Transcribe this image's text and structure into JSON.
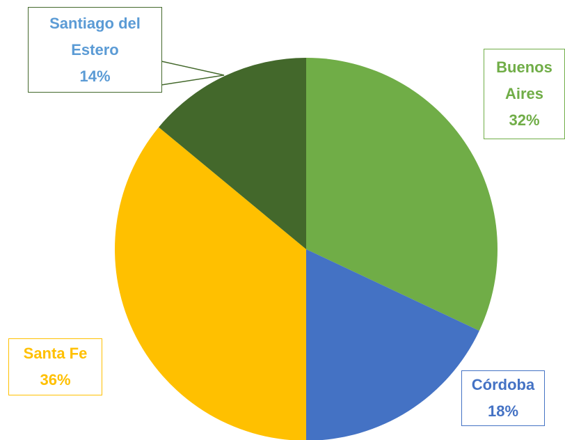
{
  "chart_data": {
    "type": "pie",
    "categories": [
      "Buenos Aires",
      "Córdoba",
      "Santa Fe",
      "Santiago del Estero"
    ],
    "values": [
      32,
      18,
      36,
      14
    ],
    "value_labels": [
      "32%",
      "18%",
      "36%",
      "14%"
    ],
    "colors": [
      "#70ad47",
      "#4472c4",
      "#ffc000",
      "#43682b"
    ],
    "label_text_colors": [
      "#70ad47",
      "#4472c4",
      "#ffc000",
      "#5b9bd5"
    ]
  }
}
